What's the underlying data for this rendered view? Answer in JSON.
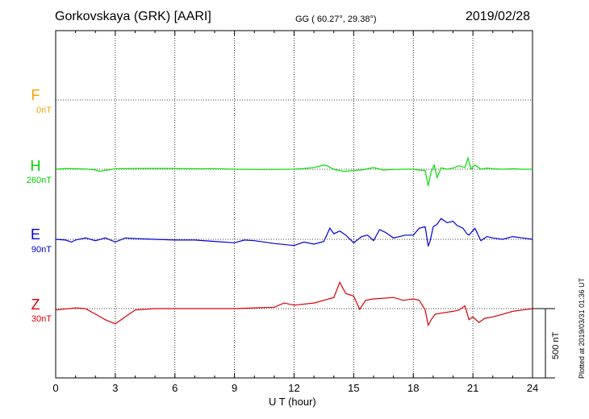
{
  "header": {
    "station": "Gorkovskaya (GRK)  [AARI]",
    "coords": "GG ( 60.27°,  29.38°)",
    "date": "2019/02/28"
  },
  "side_note": "Plotted at 2019/03/31 01:36 UT",
  "scale_bar": {
    "label": "500 nT",
    "value": 500
  },
  "components": [
    {
      "name": "F",
      "baseline": "0nT",
      "color": "#f5a300"
    },
    {
      "name": "H",
      "baseline": "260nT",
      "color": "#00e000"
    },
    {
      "name": "E",
      "baseline": "90nT",
      "color": "#0000dd"
    },
    {
      "name": "Z",
      "baseline": "30nT",
      "color": "#dd0000"
    }
  ],
  "chart_data": {
    "type": "line",
    "title": "Gorkovskaya (GRK)  [AARI]",
    "xlabel": "U T (hour)",
    "ylabel": "",
    "xlim": [
      0,
      24
    ],
    "xticks": [
      "0",
      "3",
      "6",
      "9",
      "12",
      "15",
      "18",
      "21",
      "24"
    ],
    "grid": true,
    "series": [
      {
        "name": "F",
        "color": "#f5a300",
        "baseline_nT": 0,
        "x": [],
        "y": []
      },
      {
        "name": "H",
        "color": "#00e000",
        "baseline_nT": 260,
        "x": [
          0,
          0.5,
          1,
          1.5,
          2,
          2.2,
          2.5,
          2.8,
          3,
          4,
          5,
          6,
          7,
          8,
          9,
          10,
          11,
          12,
          12.5,
          13,
          13.5,
          13.7,
          14,
          14.5,
          15,
          15.5,
          16,
          16.5,
          17,
          17.5,
          18,
          18.3,
          18.6,
          18.75,
          18.9,
          19.05,
          19.2,
          19.4,
          19.7,
          20,
          20.3,
          20.6,
          20.75,
          20.9,
          21.1,
          21.4,
          21.7,
          22,
          22.5,
          23,
          23.5,
          24
        ],
        "y": [
          0,
          5,
          3,
          2,
          -5,
          -15,
          -8,
          -2,
          3,
          5,
          6,
          5,
          3,
          4,
          0,
          -2,
          -2,
          0,
          5,
          12,
          30,
          22,
          -2,
          -15,
          -10,
          -3,
          12,
          -6,
          -2,
          0,
          0,
          -6,
          -10,
          -120,
          -20,
          30,
          -60,
          10,
          0,
          8,
          25,
          12,
          80,
          2,
          30,
          0,
          8,
          3,
          0,
          3,
          0,
          0
        ]
      },
      {
        "name": "E",
        "color": "#0000dd",
        "baseline_nT": 90,
        "x": [
          0,
          0.5,
          0.8,
          1,
          1.5,
          2,
          2.5,
          3,
          3.5,
          4,
          5,
          6,
          7,
          8,
          9,
          9.5,
          10,
          11,
          12,
          12.5,
          13,
          13.5,
          13.8,
          14,
          14.3,
          14.6,
          15,
          15.4,
          15.7,
          16,
          16.3,
          16.6,
          17,
          17.3,
          17.6,
          18,
          18.3,
          18.6,
          18.75,
          18.85,
          19,
          19.2,
          19.4,
          19.7,
          20,
          20.2,
          20.5,
          20.7,
          20.8,
          21.1,
          21.4,
          21.7,
          22,
          22.5,
          23,
          23.5,
          24
        ],
        "y": [
          0,
          -5,
          -20,
          -5,
          10,
          -10,
          10,
          -20,
          10,
          5,
          0,
          -5,
          -5,
          -15,
          -25,
          -5,
          -10,
          -30,
          -45,
          -20,
          -35,
          -15,
          80,
          40,
          60,
          30,
          -25,
          20,
          30,
          -10,
          70,
          50,
          10,
          20,
          30,
          30,
          80,
          90,
          -50,
          -10,
          90,
          110,
          150,
          120,
          130,
          100,
          80,
          40,
          30,
          80,
          -10,
          20,
          10,
          0,
          20,
          10,
          0
        ]
      },
      {
        "name": "Z",
        "color": "#dd0000",
        "baseline_nT": 30,
        "x": [
          0,
          1,
          1.5,
          2,
          2.5,
          3,
          3.5,
          4,
          5,
          6,
          7,
          8,
          9,
          10,
          11,
          11.5,
          12,
          13,
          13.5,
          14,
          14.3,
          14.6,
          15,
          15.3,
          15.6,
          16,
          17,
          17.5,
          18,
          18.3,
          18.6,
          18.75,
          18.9,
          19.1,
          19.5,
          20,
          20.3,
          20.6,
          20.8,
          21,
          21.3,
          21.6,
          22,
          22.5,
          23,
          23.5,
          24
        ],
        "y": [
          -10,
          5,
          0,
          -40,
          -80,
          -110,
          -60,
          -10,
          0,
          0,
          0,
          0,
          0,
          5,
          10,
          40,
          25,
          40,
          60,
          80,
          190,
          110,
          90,
          -5,
          60,
          70,
          80,
          60,
          70,
          60,
          -10,
          -120,
          -80,
          -40,
          -30,
          -20,
          -10,
          20,
          -80,
          -60,
          -100,
          -70,
          -60,
          -40,
          -20,
          -10,
          0
        ]
      }
    ]
  }
}
